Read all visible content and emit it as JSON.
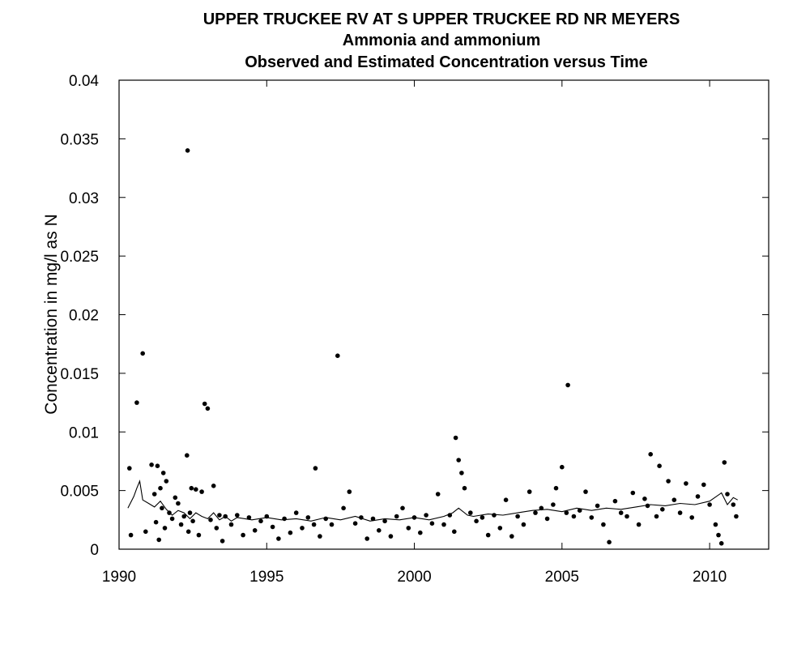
{
  "chart_data": {
    "type": "scatter",
    "title": [
      "UPPER TRUCKEE RV AT S UPPER TRUCKEE RD NR MEYERS",
      "Ammonia and ammonium",
      "Observed and Estimated Concentration versus Time"
    ],
    "xlabel": "",
    "ylabel": "Concentration in mg/l as N",
    "xlim": [
      1990,
      2012
    ],
    "ylim": [
      0,
      0.04
    ],
    "xticks": [
      1990,
      1995,
      2000,
      2005,
      2010
    ],
    "xtick_labels": [
      "1990",
      "1995",
      "2000",
      "2005",
      "2010"
    ],
    "yticks": [
      0,
      0.005,
      0.01,
      0.015,
      0.02,
      0.025,
      0.03,
      0.035,
      0.04
    ],
    "ytick_labels": [
      "0",
      "0.005",
      "0.01",
      "0.015",
      "0.02",
      "0.025",
      "0.03",
      "0.035",
      "0.04"
    ],
    "grid": false,
    "legend": "none",
    "series": [
      {
        "kind": "points",
        "color": "#000000",
        "x": [
          1990.35,
          1990.4,
          1990.6,
          1990.8,
          1990.9,
          1991.1,
          1991.2,
          1991.25,
          1991.3,
          1991.35,
          1991.4,
          1991.45,
          1991.5,
          1991.55,
          1991.6,
          1991.7,
          1991.8,
          1991.9,
          1992.0,
          1992.1,
          1992.2,
          1992.3,
          1992.32,
          1992.35,
          1992.4,
          1992.45,
          1992.5,
          1992.6,
          1992.7,
          1992.8,
          1992.9,
          1993.0,
          1993.1,
          1993.2,
          1993.3,
          1993.4,
          1993.5,
          1993.6,
          1993.8,
          1994.0,
          1994.2,
          1994.4,
          1994.6,
          1994.8,
          1995.0,
          1995.2,
          1995.4,
          1995.6,
          1995.8,
          1996.0,
          1996.2,
          1996.4,
          1996.6,
          1996.65,
          1996.8,
          1997.0,
          1997.2,
          1997.4,
          1997.6,
          1997.8,
          1998.0,
          1998.2,
          1998.4,
          1998.6,
          1998.8,
          1999.0,
          1999.2,
          1999.4,
          1999.6,
          1999.8,
          2000.0,
          2000.2,
          2000.4,
          2000.6,
          2000.8,
          2001.0,
          2001.2,
          2001.35,
          2001.4,
          2001.5,
          2001.6,
          2001.7,
          2001.9,
          2002.1,
          2002.3,
          2002.5,
          2002.7,
          2002.9,
          2003.1,
          2003.3,
          2003.5,
          2003.7,
          2003.9,
          2004.1,
          2004.3,
          2004.5,
          2004.7,
          2004.8,
          2005.0,
          2005.15,
          2005.2,
          2005.4,
          2005.6,
          2005.8,
          2006.0,
          2006.2,
          2006.4,
          2006.6,
          2006.8,
          2007.0,
          2007.2,
          2007.4,
          2007.6,
          2007.8,
          2007.9,
          2008.0,
          2008.2,
          2008.3,
          2008.4,
          2008.6,
          2008.8,
          2009.0,
          2009.2,
          2009.4,
          2009.6,
          2009.8,
          2010.0,
          2010.2,
          2010.3,
          2010.4,
          2010.5,
          2010.6,
          2010.8,
          2010.9
        ],
        "y": [
          0.0069,
          0.0012,
          0.0125,
          0.0167,
          0.0015,
          0.0072,
          0.0047,
          0.0023,
          0.0071,
          0.0008,
          0.0052,
          0.0035,
          0.0065,
          0.0018,
          0.0058,
          0.0031,
          0.0026,
          0.0044,
          0.0039,
          0.0021,
          0.0028,
          0.008,
          0.034,
          0.0015,
          0.0031,
          0.0052,
          0.0024,
          0.0051,
          0.0012,
          0.0049,
          0.0124,
          0.012,
          0.0025,
          0.0054,
          0.0018,
          0.0029,
          0.0007,
          0.0028,
          0.0021,
          0.0029,
          0.0012,
          0.0027,
          0.0016,
          0.0024,
          0.0028,
          0.0019,
          0.0009,
          0.0026,
          0.0014,
          0.0031,
          0.0018,
          0.0027,
          0.0021,
          0.0069,
          0.0011,
          0.0026,
          0.0021,
          0.0165,
          0.0035,
          0.0049,
          0.0022,
          0.0027,
          0.0009,
          0.0026,
          0.0016,
          0.0024,
          0.0011,
          0.0028,
          0.0035,
          0.0018,
          0.0027,
          0.0014,
          0.0029,
          0.0022,
          0.0047,
          0.0021,
          0.0029,
          0.0015,
          0.0095,
          0.0076,
          0.0065,
          0.0052,
          0.0031,
          0.0024,
          0.0027,
          0.0012,
          0.0029,
          0.0018,
          0.0042,
          0.0011,
          0.0028,
          0.0021,
          0.0049,
          0.0031,
          0.0035,
          0.0026,
          0.0038,
          0.0052,
          0.007,
          0.0031,
          0.014,
          0.0028,
          0.0033,
          0.0049,
          0.0027,
          0.0037,
          0.0021,
          0.0006,
          0.0041,
          0.0031,
          0.0028,
          0.0048,
          0.0021,
          0.0043,
          0.0037,
          0.0081,
          0.0028,
          0.0071,
          0.0034,
          0.0058,
          0.0042,
          0.0031,
          0.0056,
          0.0027,
          0.0045,
          0.0055,
          0.0038,
          0.0021,
          0.0012,
          0.0005,
          0.0074,
          0.0047,
          0.0038,
          0.0028
        ]
      },
      {
        "kind": "line",
        "color": "#000000",
        "x": [
          1990.3,
          1990.5,
          1990.6,
          1990.7,
          1990.8,
          1991.0,
          1991.2,
          1991.4,
          1991.6,
          1991.8,
          1992.0,
          1992.2,
          1992.4,
          1992.6,
          1992.8,
          1993.0,
          1993.2,
          1993.4,
          1993.6,
          1993.8,
          1994.0,
          1994.5,
          1995.0,
          1995.5,
          1996.0,
          1996.5,
          1997.0,
          1997.5,
          1998.0,
          1998.5,
          1999.0,
          1999.5,
          2000.0,
          2000.5,
          2001.0,
          2001.3,
          2001.5,
          2001.8,
          2002.0,
          2002.5,
          2003.0,
          2003.5,
          2004.0,
          2004.5,
          2005.0,
          2005.5,
          2006.0,
          2006.5,
          2007.0,
          2007.5,
          2008.0,
          2008.5,
          2009.0,
          2009.5,
          2010.0,
          2010.4,
          2010.6,
          2010.8,
          2010.95
        ],
        "y": [
          0.0035,
          0.0045,
          0.0052,
          0.0058,
          0.0042,
          0.0039,
          0.0036,
          0.0041,
          0.0034,
          0.0029,
          0.0033,
          0.0031,
          0.0026,
          0.0031,
          0.0028,
          0.0026,
          0.0031,
          0.0025,
          0.0028,
          0.0024,
          0.0027,
          0.0025,
          0.0027,
          0.0025,
          0.0026,
          0.0024,
          0.0027,
          0.0025,
          0.0028,
          0.0024,
          0.0026,
          0.0025,
          0.0027,
          0.0025,
          0.0028,
          0.0031,
          0.0035,
          0.0029,
          0.0028,
          0.003,
          0.0029,
          0.0031,
          0.0033,
          0.0034,
          0.0032,
          0.0035,
          0.0033,
          0.0035,
          0.0034,
          0.0036,
          0.0038,
          0.0037,
          0.0039,
          0.0038,
          0.0041,
          0.0048,
          0.0038,
          0.0044,
          0.0042
        ]
      }
    ]
  }
}
